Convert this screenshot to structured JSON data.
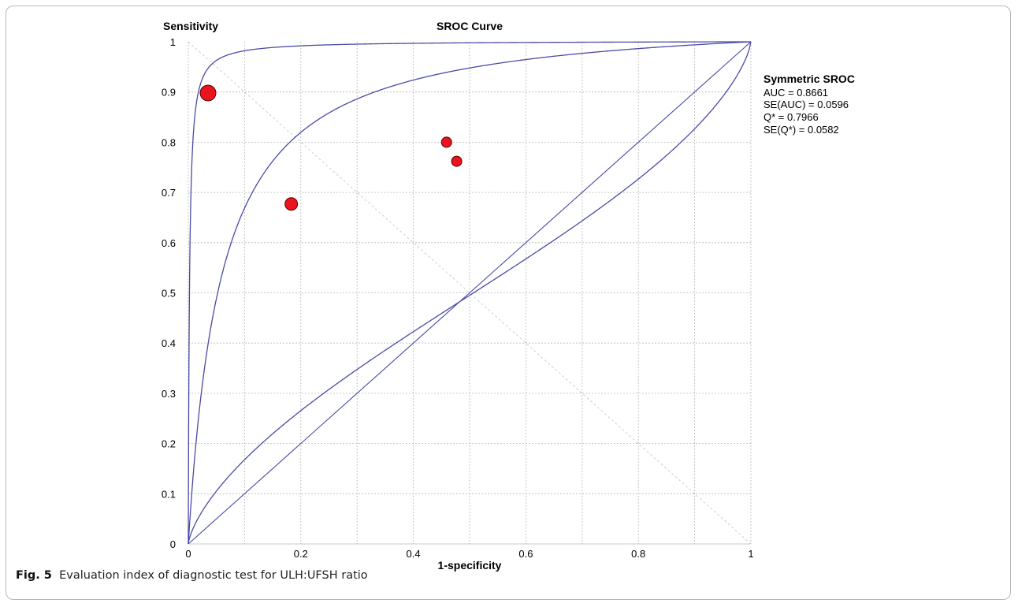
{
  "chart_data": {
    "type": "scatter",
    "title": "SROC Curve",
    "xlabel": "1-specificity",
    "ylabel": "Sensitivity",
    "xlim": [
      0,
      1
    ],
    "ylim": [
      0,
      1
    ],
    "x_ticks": [
      "0",
      "0.2",
      "0.4",
      "0.6",
      "0.8",
      "1"
    ],
    "y_ticks": [
      "0",
      "0.1",
      "0.2",
      "0.3",
      "0.4",
      "0.5",
      "0.6",
      "0.7",
      "0.8",
      "0.9",
      "1"
    ],
    "grid": true,
    "points": [
      {
        "x": 0.035,
        "y": 0.898,
        "weight": "large"
      },
      {
        "x": 0.183,
        "y": 0.677,
        "weight": "medium"
      },
      {
        "x": 0.459,
        "y": 0.8,
        "weight": "small"
      },
      {
        "x": 0.477,
        "y": 0.762,
        "weight": "small"
      }
    ],
    "curves": [
      {
        "type": "sroc_curve",
        "auc": 0.8661
      },
      {
        "type": "sroc_confidence_upper"
      },
      {
        "type": "sroc_confidence_lower"
      }
    ],
    "stats": {
      "title": "Symmetric SROC",
      "lines": [
        "AUC = 0.8661",
        "SE(AUC) = 0.0596",
        "Q* = 0.7966",
        "SE(Q*) = 0.0582"
      ]
    },
    "colors": {
      "curve": "#4a4aa6",
      "point": "#e8141e",
      "grid": "#b8b8b8"
    }
  },
  "caption": {
    "label": "Fig. 5",
    "text": "Evaluation index of diagnostic test for ULH:UFSH ratio"
  }
}
